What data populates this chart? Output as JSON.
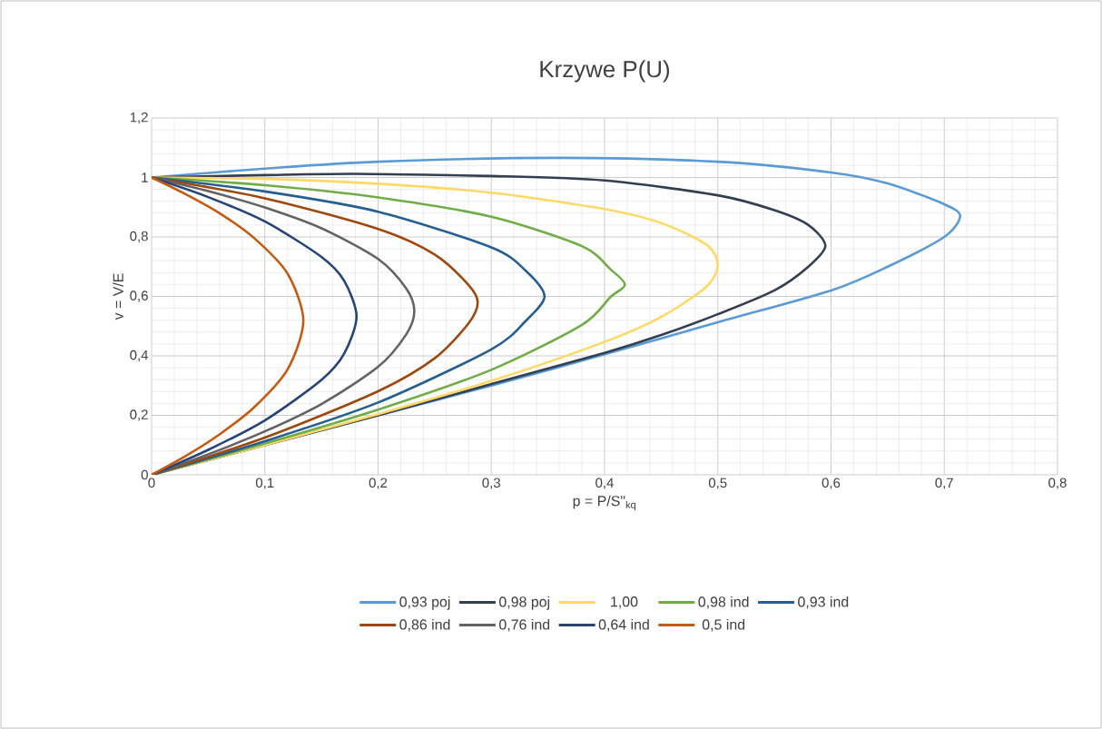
{
  "chart_data": {
    "type": "line",
    "title": "Krzywe P(U)",
    "xlabel": "p = P/S\"$_{kq}$",
    "ylabel": "v = V/E",
    "xlim": [
      0,
      0.8
    ],
    "ylim": [
      0,
      1.2
    ],
    "xticks": [
      0,
      {
        "value": 0.1,
        "label": "0,1"
      },
      {
        "value": 0.2,
        "label": "0,2"
      },
      {
        "value": 0.3,
        "label": "0,3"
      },
      {
        "value": 0.4,
        "label": "0,4"
      },
      {
        "value": 0.5,
        "label": "0,5"
      },
      {
        "value": 0.6,
        "label": "0,6"
      },
      {
        "value": 0.7,
        "label": "0,7"
      },
      {
        "value": 0.8,
        "label": "0,8"
      }
    ],
    "yticks": [
      0,
      {
        "value": 0.2,
        "label": "0,2"
      },
      {
        "value": 0.4,
        "label": "0,4"
      },
      {
        "value": 0.6,
        "label": "0,6"
      },
      {
        "value": 0.8,
        "label": "0,8"
      },
      1,
      {
        "value": 1.2,
        "label": "1,2"
      }
    ],
    "grid": true,
    "legend": "bottom",
    "marker": "none",
    "line_style": "solid",
    "series": [
      {
        "name": "0,93 poj",
        "color": "#5b9bd5",
        "x": [
          0,
          0.1,
          0.2,
          0.3,
          0.4,
          0.5,
          0.6,
          0.65,
          0.7,
          0.714,
          0.7,
          0.65,
          0.6,
          0.5,
          0.36,
          0.2,
          0.1,
          0
        ],
        "values": [
          0,
          0.1,
          0.2,
          0.3,
          0.405,
          0.513,
          0.62,
          0.7,
          0.8,
          0.87,
          0.91,
          0.98,
          1.017,
          1.053,
          1.066,
          1.053,
          1.03,
          1
        ]
      },
      {
        "name": "0,98 poj",
        "color": "#333f50",
        "x": [
          0,
          0.1,
          0.2,
          0.3,
          0.4,
          0.45,
          0.5,
          0.55,
          0.58,
          0.595,
          0.58,
          0.55,
          0.5,
          0.4,
          0.3,
          0.18,
          0.1,
          0
        ],
        "values": [
          0,
          0.1,
          0.2,
          0.305,
          0.41,
          0.47,
          0.54,
          0.62,
          0.7,
          0.77,
          0.84,
          0.89,
          0.94,
          0.99,
          1.005,
          1.012,
          1.008,
          1
        ]
      },
      {
        "name": "1,00",
        "color": "#ffd966",
        "x": [
          0,
          0.1,
          0.2,
          0.3,
          0.4,
          0.45,
          0.49,
          0.5,
          0.49,
          0.45,
          0.4,
          0.3,
          0.2,
          0.1,
          0
        ],
        "values": [
          0,
          0.1,
          0.204,
          0.316,
          0.447,
          0.531,
          0.633,
          0.707,
          0.774,
          0.847,
          0.894,
          0.949,
          0.979,
          0.995,
          1
        ]
      },
      {
        "name": "0,98 ind",
        "color": "#70ad47",
        "x": [
          0,
          0.1,
          0.2,
          0.3,
          0.38,
          0.405,
          0.418,
          0.405,
          0.38,
          0.3,
          0.2,
          0.1,
          0
        ],
        "values": [
          0,
          0.105,
          0.219,
          0.353,
          0.504,
          0.597,
          0.64,
          0.692,
          0.769,
          0.868,
          0.933,
          0.974,
          1
        ]
      },
      {
        "name": "0,93 ind",
        "color": "#255e91",
        "x": [
          0,
          0.1,
          0.2,
          0.3,
          0.33,
          0.347,
          0.33,
          0.3,
          0.2,
          0.1,
          0
        ],
        "values": [
          0,
          0.113,
          0.243,
          0.422,
          0.516,
          0.6,
          0.688,
          0.765,
          0.885,
          0.953,
          1
        ]
      },
      {
        "name": "0,86 ind",
        "color": "#9e480e",
        "x": [
          0,
          0.1,
          0.2,
          0.25,
          0.28,
          0.288,
          0.28,
          0.25,
          0.2,
          0.1,
          0
        ],
        "values": [
          0,
          0.125,
          0.281,
          0.392,
          0.51,
          0.58,
          0.638,
          0.741,
          0.827,
          0.93,
          1
        ]
      },
      {
        "name": "0,76 ind",
        "color": "#636363",
        "x": [
          0,
          0.05,
          0.1,
          0.15,
          0.2,
          0.225,
          0.232,
          0.225,
          0.2,
          0.15,
          0.1,
          0.05,
          0
        ],
        "values": [
          0,
          0.069,
          0.146,
          0.238,
          0.363,
          0.473,
          0.55,
          0.626,
          0.726,
          0.829,
          0.899,
          0.954,
          1
        ]
      },
      {
        "name": "0,64 ind",
        "color": "#264478",
        "x": [
          0,
          0.05,
          0.1,
          0.15,
          0.17,
          0.181,
          0.17,
          0.15,
          0.1,
          0.05,
          0
        ],
        "values": [
          0,
          0.084,
          0.183,
          0.319,
          0.407,
          0.532,
          0.653,
          0.733,
          0.852,
          0.934,
          1
        ]
      },
      {
        "name": "0,5 ind",
        "color": "#c55a11",
        "x": [
          0,
          0.03,
          0.06,
          0.09,
          0.12,
          0.134,
          0.12,
          0.09,
          0.06,
          0.03,
          0
        ],
        "values": [
          0,
          0.063,
          0.136,
          0.225,
          0.354,
          0.518,
          0.677,
          0.798,
          0.88,
          0.944,
          1
        ]
      }
    ]
  }
}
